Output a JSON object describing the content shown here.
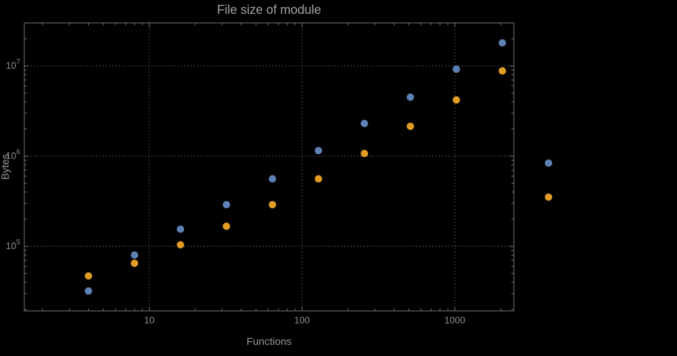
{
  "chart_data": {
    "type": "scatter",
    "title": "File size of module",
    "xlabel": "Functions",
    "ylabel": "Bytes",
    "x_scale": "log",
    "y_scale": "log",
    "x_ticks": [
      10,
      100,
      1000
    ],
    "x_tick_labels": [
      "10",
      "100",
      "1000"
    ],
    "y_ticks": [
      100000,
      1000000,
      10000000
    ],
    "y_tick_exponents": [
      5,
      6,
      7
    ],
    "x_range": [
      1.5,
      2450
    ],
    "y_range": [
      19000,
      30000000
    ],
    "grid": "dotted",
    "x": [
      4,
      8,
      16,
      32,
      64,
      128,
      256,
      512,
      1024,
      2048
    ],
    "series": [
      {
        "name": "series-1-blue",
        "color": "#5e81b5",
        "values": [
          32000,
          80000,
          155000,
          290000,
          560000,
          1150000,
          2300000,
          4500000,
          9200000,
          18000000
        ]
      },
      {
        "name": "series-2-orange",
        "color": "#e19c24",
        "values": [
          47000,
          65000,
          104000,
          167000,
          290000,
          560000,
          1070000,
          2140000,
          4200000,
          8800000
        ]
      }
    ],
    "legend": {
      "labels_visible": false,
      "marker_colors": [
        "#5e81b5",
        "#e19c24"
      ]
    }
  },
  "colors": {
    "background": "#000000",
    "grid": "#585858",
    "frame": "#7d7d7d",
    "tick_label": "#8d8d8d",
    "title": "#a3a3a3",
    "axis_label": "#989898"
  }
}
